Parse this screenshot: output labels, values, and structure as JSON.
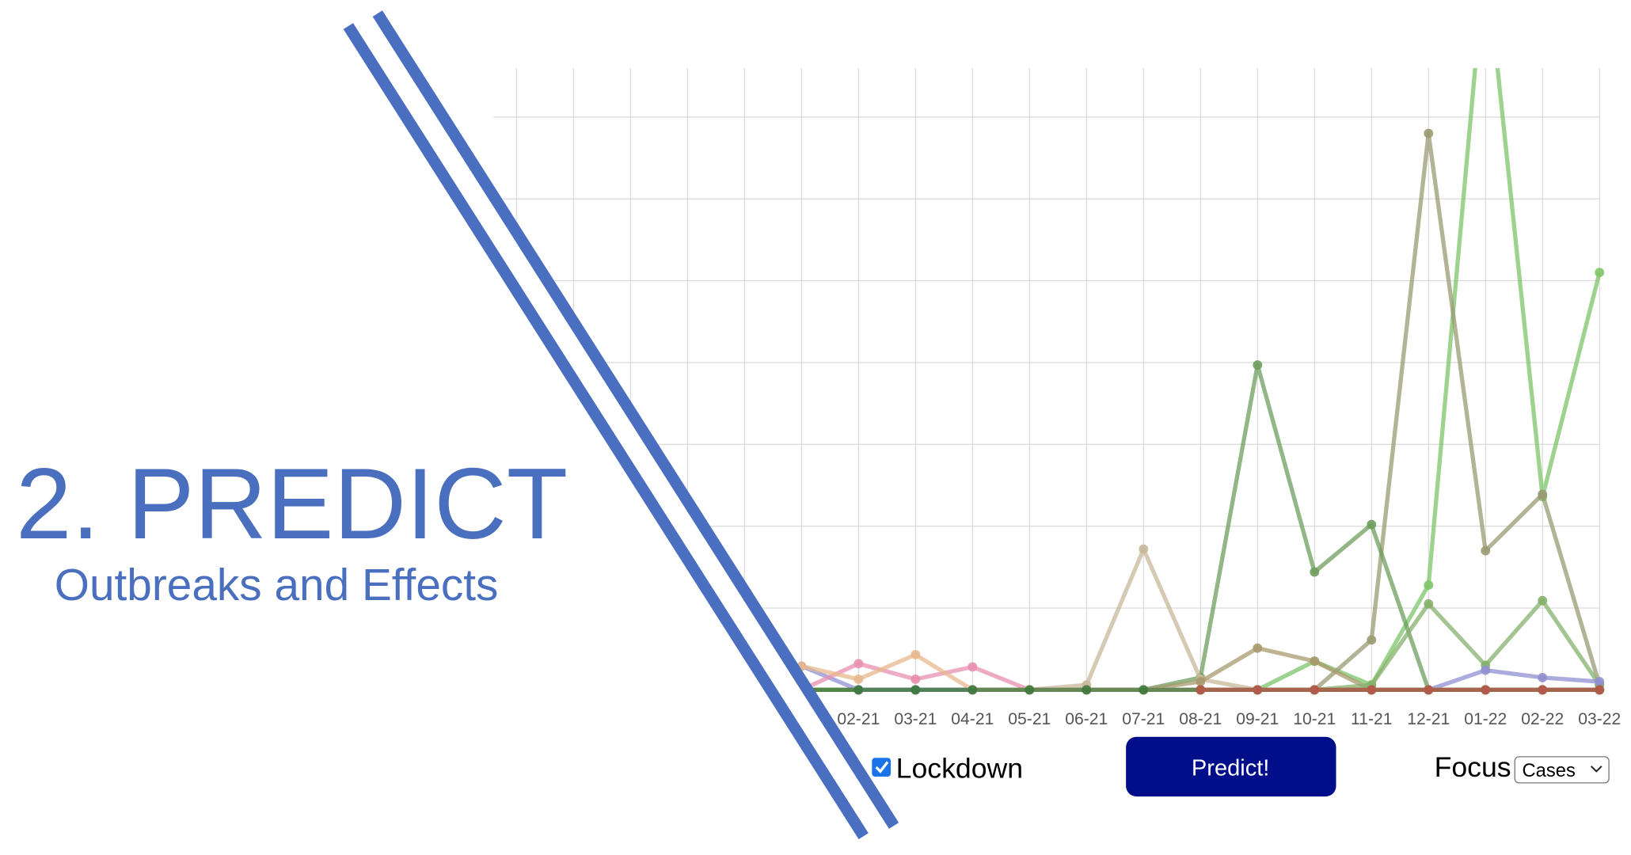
{
  "title": "2. PREDICT",
  "subtitle": "Outbreaks and Effects",
  "chart_data": {
    "type": "line",
    "categories": [
      null,
      null,
      null,
      null,
      null,
      null,
      "02-21",
      "03-21",
      "04-21",
      "05-21",
      "06-21",
      "07-21",
      "08-21",
      "09-21",
      "10-21",
      "11-21",
      "12-21",
      "01-22",
      "02-22",
      "03-22"
    ],
    "ylim": [
      0,
      7.6
    ],
    "yticks": [
      0,
      1,
      2,
      3,
      4,
      5,
      6,
      7
    ],
    "grid": true,
    "series": [
      {
        "color": "#7ec46a",
        "values": [
          null,
          null,
          null,
          null,
          null,
          0,
          0,
          0,
          0,
          0,
          0,
          0,
          0,
          0,
          0.35,
          0.06,
          1.28,
          9,
          2.36,
          5.1
        ]
      },
      {
        "color": "#9a9a72",
        "values": [
          null,
          null,
          null,
          null,
          null,
          0,
          0,
          0,
          0,
          0,
          0,
          0,
          0,
          0,
          0,
          0.61,
          6.8,
          1.7,
          2.39,
          0.06
        ]
      },
      {
        "color": "#6e9e5e",
        "values": [
          null,
          null,
          null,
          null,
          null,
          0,
          0,
          0,
          0,
          0,
          0,
          0,
          0.15,
          3.97,
          1.44,
          2.02,
          0,
          0,
          0,
          0
        ]
      },
      {
        "color": "#c8b89c",
        "values": [
          null,
          null,
          null,
          null,
          null,
          0,
          0,
          0,
          0,
          0,
          0.06,
          1.72,
          0.13,
          0,
          0,
          0,
          0,
          0,
          0,
          0
        ]
      },
      {
        "color": "#a89a6e",
        "values": [
          null,
          null,
          null,
          null,
          null,
          0,
          0,
          0,
          0,
          0,
          0,
          0,
          0.1,
          0.51,
          0.35,
          0,
          0,
          0,
          0,
          0
        ]
      },
      {
        "color": "#86b06c",
        "values": [
          null,
          null,
          null,
          null,
          null,
          0,
          0,
          0,
          0,
          0,
          0,
          0,
          0,
          0,
          0,
          0.06,
          1.05,
          0.3,
          1.09,
          0.06
        ]
      },
      {
        "color": "#8f8fd2",
        "values": [
          null,
          null,
          null,
          null,
          null,
          0.29,
          0,
          0,
          0,
          0,
          0,
          0,
          0,
          0,
          0,
          0,
          0,
          0.24,
          0.15,
          0.1
        ]
      },
      {
        "color": "#e88fb0",
        "values": [
          null,
          null,
          null,
          null,
          null,
          0,
          0.32,
          0.13,
          0.28,
          0,
          0,
          0,
          0,
          0,
          0,
          0,
          0,
          0,
          0,
          0
        ]
      },
      {
        "color": "#e8b88e",
        "values": [
          null,
          null,
          null,
          null,
          null,
          0.29,
          0.13,
          0.43,
          0,
          0,
          0,
          0,
          0,
          0,
          0,
          0,
          0,
          0,
          0,
          0
        ]
      },
      {
        "color": "#3d7a3d",
        "values": [
          null,
          null,
          null,
          null,
          null,
          0,
          0,
          0,
          0,
          0,
          0,
          0,
          0,
          0,
          0,
          0,
          0,
          0,
          0,
          0
        ]
      },
      {
        "color": "#b85a4a",
        "values": [
          null,
          null,
          null,
          null,
          null,
          null,
          null,
          null,
          null,
          null,
          null,
          null,
          0,
          0,
          0,
          0,
          0,
          0,
          0,
          0
        ]
      }
    ]
  },
  "controls": {
    "lockdown": "Lockdown",
    "lockdown_checked": true,
    "button": "Predict!",
    "focus": "Focus",
    "focus_value": "Cases"
  }
}
